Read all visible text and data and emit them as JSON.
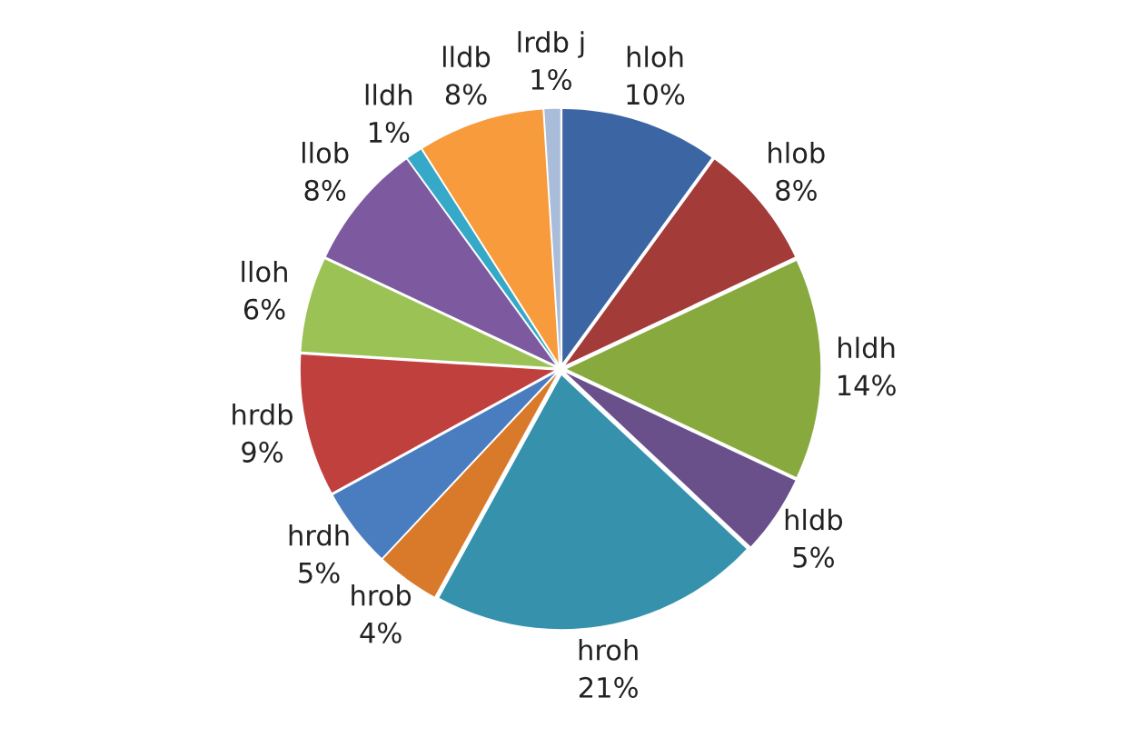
{
  "chart_data": {
    "type": "pie",
    "categories": [
      "hloh",
      "hlob",
      "hldh",
      "hldb",
      "hroh",
      "hrob",
      "hrdh",
      "hrdb",
      "lloh",
      "llob",
      "lldh",
      "lldb",
      "lrdb j"
    ],
    "values": [
      10,
      8,
      14,
      5,
      21,
      4,
      5,
      9,
      6,
      8,
      1,
      8,
      1
    ],
    "value_labels": [
      "10%",
      "8%",
      "14%",
      "5%",
      "21%",
      "4%",
      "5%",
      "9%",
      "6%",
      "8%",
      "1%",
      "8%",
      "1%"
    ],
    "colors": [
      "#3b65a3",
      "#a33b38",
      "#87a93d",
      "#69508a",
      "#3591ac",
      "#d97a2b",
      "#4a7cc0",
      "#c0403e",
      "#9bc255",
      "#7d5aa0",
      "#36a8c8",
      "#f79b3d",
      "#a9bcd9"
    ],
    "legend": false
  }
}
